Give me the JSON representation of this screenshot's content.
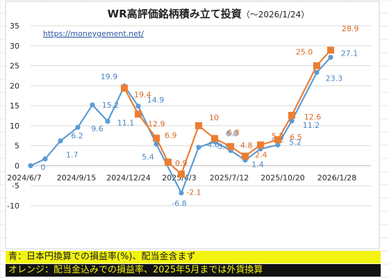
{
  "chart_data": {
    "type": "line",
    "title": "WR高評価銘柄積み立て投資",
    "title_suffix": "（～2026/1/24）",
    "url_text": "https://moneygement.net/",
    "ylim": [
      -10,
      35
    ],
    "yticks": [
      35,
      30,
      25,
      20,
      15,
      10,
      5,
      0,
      -5,
      -10
    ],
    "x_tick_labels": [
      "2024/6/7",
      "2024/9/15",
      "2024/12/24",
      "2025/4/3",
      "2025/7/12",
      "2025/10/20",
      "2026/1/28"
    ],
    "grid": true,
    "colors": {
      "blue": "#5b9bd5",
      "orange": "#ed7d31",
      "grid": "#d9d9d9"
    },
    "series": [
      {
        "key": "blue",
        "values": [
          0,
          1.7,
          6.2,
          9.6,
          15.2,
          11.1,
          19.9,
          14.9,
          5.4,
          -6.8,
          4.6,
          6.0,
          3.8,
          1.4,
          4.2,
          5.2,
          11.2,
          23.3,
          27.1
        ],
        "labels": [
          "0",
          "1.7",
          "6.2",
          "9.6",
          "15.2",
          "11.1",
          "19.9",
          "14.9",
          "5.4",
          "-6.8",
          "4.6",
          "6.0",
          "3.8",
          "1.4",
          "4.2",
          "5.2",
          "11.2",
          "23.3",
          "27.1"
        ]
      },
      {
        "key": "orange",
        "values": [
          19.4,
          12.9,
          6.9,
          0.9,
          -2.1,
          10,
          6.8,
          4.8,
          2.4,
          5.2,
          6.5,
          12.6,
          25.0,
          28.9
        ],
        "labels": [
          "19.4",
          "12.9",
          "6.9",
          "0.9",
          "-2.1",
          "10",
          "6.8",
          "4.8",
          "2.4",
          "5.2",
          "6.5",
          "12.6",
          "25.0",
          "28.9"
        ]
      }
    ]
  },
  "notes": {
    "blue_note": "青：日本円換算での損益率(%)、配当金含まず",
    "orange_note": "オレンジ：配当金込みでの損益率、2025年5月までは外貨換算"
  }
}
